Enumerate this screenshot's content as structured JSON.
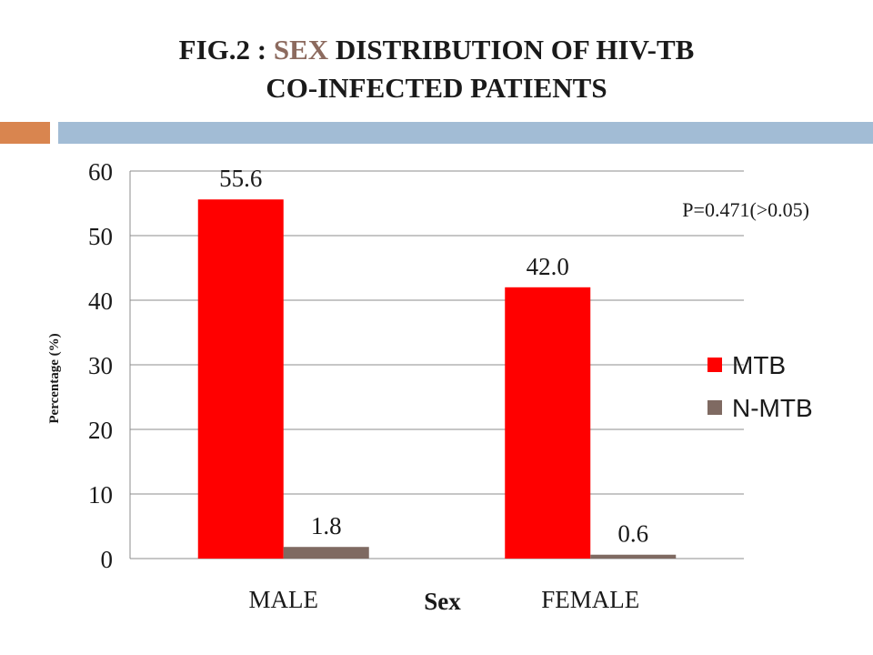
{
  "header": {
    "title_part1": "FIG.2 : ",
    "title_highlight": "SEX",
    "title_part2": " DISTRIBUTION  OF HIV-TB",
    "title_line2": "CO-INFECTED PATIENTS"
  },
  "colors": {
    "mtb": "#ff0000",
    "nmtb": "#7f6a62",
    "title_highlight": "#8c6a5e",
    "accent_orange": "#d9854f",
    "accent_blue": "#a2bcd5",
    "gridline": "#8c8c8c"
  },
  "chart_data": {
    "type": "bar",
    "categories": [
      "MALE",
      "FEMALE"
    ],
    "series": [
      {
        "name": "MTB",
        "values": [
          55.6,
          42.0
        ],
        "labels": [
          "55.6",
          "42.0"
        ]
      },
      {
        "name": "N-MTB",
        "values": [
          1.8,
          0.6
        ],
        "labels": [
          "1.8",
          "0.6"
        ]
      }
    ],
    "ylim": [
      0,
      60
    ],
    "yticks": [
      0,
      10,
      20,
      30,
      40,
      50,
      60
    ],
    "xlabel": "Sex",
    "ylabel": "Percentage (%)",
    "grid": true,
    "legend_position": "right",
    "annotation": "P=0.471(>0.05)"
  }
}
